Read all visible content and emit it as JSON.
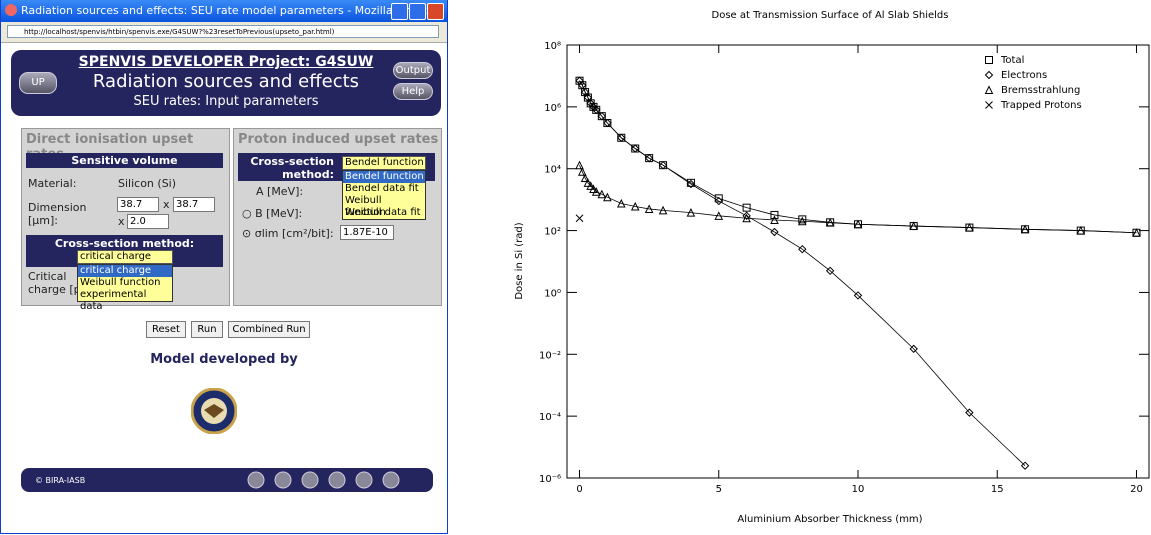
{
  "window": {
    "title": "Radiation sources and effects: SEU rate model parameters - Mozilla Firefox",
    "url": "http://localhost/spenvis/htbin/spenvis.exe/G4SUW?%23resetToPrevious(upseto_par.html)",
    "header": {
      "up": "UP",
      "project": "SPENVIS DEVELOPER Project: G4SUW",
      "title": "Radiation sources and effects",
      "subtitle": "SEU rates: Input parameters",
      "output": "Output",
      "help": "Help"
    },
    "direct": {
      "title": "Direct ionisation upset rates",
      "section": "Sensitive volume",
      "material_label": "Material:",
      "material": "Silicon (Si)",
      "dimension_label": "Dimension [µm]:",
      "dim1": "38.7",
      "dim2": "38.7",
      "dim3": "2.0",
      "times": "x",
      "method_label": "Cross-section method:",
      "method": "critical charge",
      "options": [
        "critical charge",
        "Weibull function",
        "experimental data"
      ],
      "charge_label": "Critical charge [pC]:"
    },
    "proton": {
      "title": "Proton induced upset rates",
      "method_label": "Cross-section method:",
      "method": "Bendel function",
      "options": [
        "Bendel function",
        "Bendel data fit",
        "Weibull function",
        "Weibull data fit"
      ],
      "a_label": "A [MeV]:",
      "b_label": "B [MeV]:",
      "sigma_label": "σlim [cm²/bit]:",
      "sigma": "1.87E-10"
    },
    "buttons": [
      "Reset",
      "Run",
      "Combined Run"
    ],
    "model": "Model developed by",
    "footer": "© BIRA-IASB"
  },
  "chart_data": {
    "type": "line",
    "title": "Dose at Transmission Surface of Al Slab Shields",
    "xlabel": "Aluminium Absorber Thickness (mm)",
    "ylabel": "Dose in Si (rad)",
    "log_y": true,
    "xlim": [
      -0.45,
      20.45
    ],
    "ylim": [
      1e-06,
      100000000
    ],
    "xticks": [
      0,
      5,
      10,
      15,
      20
    ],
    "yticks": [
      {
        "value": 1e-06,
        "label": "10⁻⁶"
      },
      {
        "value": 0.0001,
        "label": "10⁻⁴"
      },
      {
        "value": 0.01,
        "label": "10⁻²"
      },
      {
        "value": 1,
        "label": "10⁰"
      },
      {
        "value": 100,
        "label": "10²"
      },
      {
        "value": 10000,
        "label": "10⁴"
      },
      {
        "value": 1000000,
        "label": "10⁶"
      },
      {
        "value": 100000000,
        "label": "10⁸"
      }
    ],
    "legend": "upper right",
    "series": [
      {
        "name": "Total",
        "color": "#000000",
        "marker": "square",
        "x": [
          0,
          0.1,
          0.2,
          0.3,
          0.4,
          0.5,
          0.6,
          0.8,
          1,
          1.5,
          2,
          2.5,
          3,
          4,
          5,
          6,
          7,
          8,
          9,
          10,
          12,
          14,
          16,
          18,
          20
        ],
        "values": [
          7000000,
          5000000,
          3000000,
          2000000,
          1300000,
          1000000,
          800000,
          500000,
          300000,
          100000,
          45000,
          22000,
          13000,
          3500,
          1100,
          550,
          320,
          230,
          185,
          160,
          140,
          125,
          110,
          100,
          85
        ]
      },
      {
        "name": "Electrons",
        "color": "#000000",
        "marker": "diamond",
        "x": [
          0,
          0.1,
          0.2,
          0.3,
          0.4,
          0.5,
          0.6,
          0.8,
          1,
          1.5,
          2,
          2.5,
          3,
          4,
          5,
          6,
          7,
          8,
          9,
          10,
          12,
          14,
          16
        ],
        "values": [
          7000000,
          5000000,
          3000000,
          2000000,
          1300000,
          1000000,
          800000,
          500000,
          300000,
          100000,
          45000,
          22000,
          13000,
          3200,
          900,
          300,
          90,
          25,
          5,
          0.8,
          0.015,
          0.00013,
          2.5e-06
        ]
      },
      {
        "name": "Bremsstrahlung",
        "color": "#000000",
        "marker": "triangle",
        "x": [
          0,
          0.1,
          0.2,
          0.3,
          0.4,
          0.5,
          0.6,
          0.8,
          1,
          1.5,
          2,
          2.5,
          3,
          4,
          5,
          6,
          7,
          8,
          9,
          10,
          12,
          14,
          16,
          18,
          20
        ],
        "values": [
          13000,
          8000,
          5000,
          3500,
          2800,
          2200,
          1800,
          1500,
          1200,
          750,
          600,
          500,
          450,
          380,
          300,
          250,
          220,
          200,
          180,
          160,
          140,
          125,
          110,
          100,
          85
        ]
      },
      {
        "name": "Trapped Protons",
        "color": "#000000",
        "marker": "x",
        "line": false,
        "x": [
          0
        ],
        "values": [
          250
        ]
      }
    ]
  }
}
